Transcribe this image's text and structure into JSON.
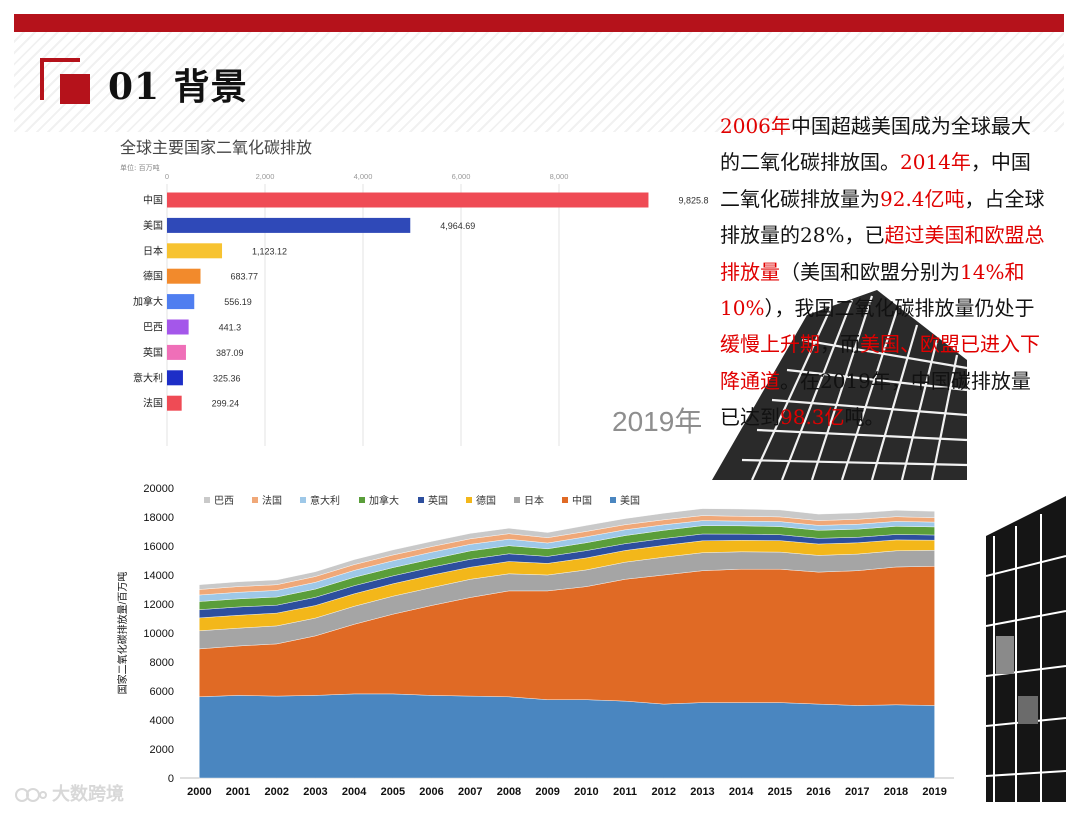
{
  "slide": {
    "title": "01 背景",
    "year_label": "2019年",
    "watermark": "大数跨境"
  },
  "text_block": {
    "segments": [
      {
        "text": "2006年",
        "hl": true
      },
      {
        "text": "中国超越美国成为全球最大的二氧化碳排放国。",
        "hl": false
      },
      {
        "text": "2014年",
        "hl": true
      },
      {
        "text": "，中国二氧化碳排放量为",
        "hl": false
      },
      {
        "text": "92.4亿吨",
        "hl": true
      },
      {
        "text": "，占全球排放量的28%，已",
        "hl": false
      },
      {
        "text": "超过美国和欧盟总排放量",
        "hl": true
      },
      {
        "text": "（美国和欧盟分别为",
        "hl": false
      },
      {
        "text": "14%和10%",
        "hl": true
      },
      {
        "text": "），我国二氧化碳排放量仍处于",
        "hl": false
      },
      {
        "text": "缓慢上升期",
        "hl": true
      },
      {
        "text": "，而",
        "hl": false
      },
      {
        "text": "美国、欧盟已进入下降通道",
        "hl": true
      },
      {
        "text": "。在2019年，中国碳排放量已达到",
        "hl": false
      },
      {
        "text": "98.3亿",
        "hl": true
      },
      {
        "text": "吨。",
        "hl": false
      }
    ]
  },
  "colors": {
    "accent": "#b5121b",
    "highlight": "#e00000"
  },
  "chart_data": [
    {
      "type": "bar",
      "title": "全球主要国家二氧化碳排放",
      "unit": "单位: 百万吨",
      "orientation": "horizontal",
      "categories": [
        "中国",
        "美国",
        "日本",
        "德国",
        "加拿大",
        "巴西",
        "英国",
        "意大利",
        "法国"
      ],
      "values": [
        9825.8,
        4964.69,
        1123.12,
        683.77,
        556.19,
        441.3,
        387.09,
        325.36,
        299.24
      ],
      "value_labels": [
        "9,825.8",
        "4,964.69",
        "1,123.12",
        "683.77",
        "556.19",
        "441.3",
        "387.09",
        "325.36",
        "299.24"
      ],
      "colors": [
        "#ef4b55",
        "#2f49b8",
        "#f7c331",
        "#f28a2c",
        "#4f7ef0",
        "#a457ea",
        "#ef6fb8",
        "#1d2ec7",
        "#ef4b55"
      ],
      "xticks": [
        0,
        2000,
        4000,
        6000,
        8000
      ],
      "xtick_labels": [
        "0",
        "2,000",
        "4,000",
        "6,000",
        "8,000"
      ],
      "xlim": [
        0,
        10000
      ],
      "grid": true
    },
    {
      "type": "area",
      "stacked": true,
      "title": "",
      "xlabel": "",
      "ylabel": "国家二氧化碳排放量/百万吨",
      "x": [
        2000,
        2001,
        2002,
        2003,
        2004,
        2005,
        2006,
        2007,
        2008,
        2009,
        2010,
        2011,
        2012,
        2013,
        2014,
        2015,
        2016,
        2017,
        2018,
        2019
      ],
      "ylim": [
        0,
        20000
      ],
      "yticks": [
        0,
        2000,
        4000,
        6000,
        8000,
        10000,
        12000,
        14000,
        16000,
        18000,
        20000
      ],
      "legend": [
        "巴西",
        "法国",
        "意大利",
        "加拿大",
        "英国",
        "德国",
        "日本",
        "中国",
        "美国"
      ],
      "legend_position": "top",
      "series": [
        {
          "name": "美国",
          "color": "#4a86c0",
          "values": [
            5600,
            5700,
            5650,
            5700,
            5800,
            5800,
            5700,
            5650,
            5600,
            5400,
            5400,
            5300,
            5100,
            5200,
            5200,
            5200,
            5100,
            5000,
            5050,
            5000
          ]
        },
        {
          "name": "中国",
          "color": "#e06a25",
          "values": [
            3300,
            3400,
            3600,
            4100,
            4800,
            5500,
            6200,
            6800,
            7300,
            7500,
            7800,
            8400,
            8900,
            9100,
            9200,
            9200,
            9100,
            9300,
            9500,
            9600
          ]
        },
        {
          "name": "日本",
          "color": "#a5a5a5",
          "values": [
            1250,
            1230,
            1240,
            1230,
            1240,
            1240,
            1230,
            1250,
            1180,
            1100,
            1150,
            1180,
            1230,
            1240,
            1200,
            1180,
            1150,
            1140,
            1120,
            1100
          ]
        },
        {
          "name": "德国",
          "color": "#f3b71a",
          "values": [
            890,
            890,
            880,
            870,
            860,
            850,
            860,
            840,
            850,
            800,
            830,
            810,
            810,
            820,
            790,
            790,
            790,
            780,
            750,
            700
          ]
        },
        {
          "name": "英国",
          "color": "#2d4f9e",
          "values": [
            570,
            570,
            550,
            560,
            560,
            550,
            550,
            540,
            530,
            480,
            500,
            470,
            480,
            470,
            430,
            410,
            390,
            380,
            370,
            360
          ]
        },
        {
          "name": "加拿大",
          "color": "#5a9e3a",
          "values": [
            560,
            560,
            560,
            570,
            580,
            570,
            560,
            580,
            560,
            530,
            550,
            560,
            560,
            570,
            570,
            560,
            550,
            560,
            570,
            560
          ]
        },
        {
          "name": "意大利",
          "color": "#9ec8e8",
          "values": [
            450,
            460,
            460,
            470,
            480,
            470,
            470,
            460,
            450,
            400,
            410,
            400,
            380,
            350,
            330,
            340,
            340,
            340,
            340,
            330
          ]
        },
        {
          "name": "法国",
          "color": "#f0a878",
          "values": [
            380,
            390,
            390,
            400,
            400,
            400,
            390,
            380,
            380,
            360,
            370,
            350,
            350,
            350,
            330,
            330,
            330,
            340,
            320,
            300
          ]
        },
        {
          "name": "巴西",
          "color": "#c9c9c9",
          "values": [
            330,
            330,
            330,
            330,
            340,
            350,
            360,
            370,
            380,
            360,
            410,
            420,
            450,
            480,
            500,
            480,
            450,
            440,
            440,
            440
          ]
        }
      ]
    }
  ]
}
